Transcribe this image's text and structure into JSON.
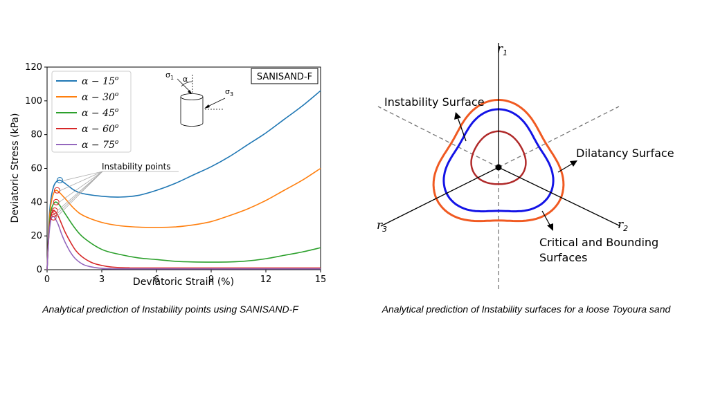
{
  "chart_data": [
    {
      "type": "line",
      "xlabel": "Deviatoric Strain (%)",
      "ylabel": "Deviatoric Stress (kPa)",
      "xlim": [
        0,
        15
      ],
      "ylim": [
        0,
        120
      ],
      "x_ticks": [
        "0",
        "3",
        "6",
        "9",
        "12",
        "15"
      ],
      "y_ticks": [
        "0",
        "20",
        "40",
        "60",
        "80",
        "100",
        "120"
      ],
      "grid": false,
      "legend_position": "top-left",
      "model_label": "SANISAND-F",
      "annotation": "Instability points",
      "inset": {
        "sigma1": "σ",
        "sigma1_sub": "1",
        "sigma3": "σ",
        "sigma3_sub": "3",
        "alpha": "α"
      },
      "series": [
        {
          "name": "α − 15°",
          "legend_base": "α − 15",
          "legend_sup": "o",
          "color": "#1f77b4",
          "x": [
            0,
            0.1,
            0.2,
            0.35,
            0.5,
            0.7,
            1.0,
            1.5,
            2.0,
            3.0,
            4.0,
            5.0,
            6.0,
            7.0,
            8.0,
            9.0,
            10.0,
            11.0,
            12.0,
            13.0,
            14.0,
            15.0
          ],
          "y": [
            0,
            28,
            41,
            49,
            52,
            53,
            51,
            47,
            45,
            43.5,
            43,
            44,
            47,
            51,
            56,
            61,
            67,
            74,
            81,
            89,
            97,
            106
          ]
        },
        {
          "name": "α − 30°",
          "legend_base": "α − 30",
          "legend_sup": "o",
          "color": "#ff7f0e",
          "x": [
            0,
            0.1,
            0.2,
            0.35,
            0.5,
            0.7,
            1.0,
            1.5,
            2.0,
            3.0,
            4.0,
            5.0,
            6.0,
            7.0,
            8.0,
            9.0,
            10.0,
            11.0,
            12.0,
            13.0,
            14.0,
            15.0
          ],
          "y": [
            0,
            25,
            38,
            45,
            47,
            45.5,
            42,
            36,
            32,
            28,
            26,
            25.2,
            25,
            25.3,
            26.5,
            28.5,
            32,
            36,
            41,
            47,
            53,
            60
          ]
        },
        {
          "name": "α − 45°",
          "legend_base": "α − 45",
          "legend_sup": "o",
          "color": "#2ca02c",
          "x": [
            0,
            0.1,
            0.2,
            0.35,
            0.5,
            0.7,
            1.0,
            1.5,
            2.0,
            3.0,
            4.0,
            5.0,
            6.0,
            7.0,
            8.0,
            9.0,
            10.0,
            11.0,
            12.0,
            13.0,
            14.0,
            15.0
          ],
          "y": [
            0,
            22,
            34,
            39,
            40,
            38,
            33,
            25,
            19,
            12,
            9,
            7,
            6,
            5,
            4.6,
            4.5,
            4.6,
            5.2,
            6.5,
            8.5,
            10.5,
            13
          ]
        },
        {
          "name": "α − 60°",
          "legend_base": "α − 60",
          "legend_sup": "o",
          "color": "#d62728",
          "x": [
            0,
            0.1,
            0.2,
            0.3,
            0.4,
            0.6,
            0.8,
            1.0,
            1.3,
            1.6,
            2.0,
            2.5,
            3.0,
            3.5,
            4.0,
            4.5,
            5.0,
            15.0
          ],
          "y": [
            0,
            21,
            31,
            34.5,
            35,
            32,
            27,
            22,
            16,
            11,
            7,
            4,
            2.5,
            1.6,
            1.2,
            1.1,
            1.0,
            1.0
          ]
        },
        {
          "name": "α − 75°",
          "legend_base": "α − 75",
          "legend_sup": "o",
          "color": "#9467bd",
          "x": [
            0,
            0.1,
            0.2,
            0.3,
            0.4,
            0.6,
            0.8,
            1.0,
            1.3,
            1.6,
            2.0,
            2.5,
            3.0,
            3.5,
            4.0,
            15.0
          ],
          "y": [
            0,
            20,
            29,
            31.5,
            31,
            27,
            21,
            16,
            10,
            6,
            3,
            1.5,
            0.8,
            0.6,
            0.5,
            0.5
          ]
        }
      ],
      "instability_points": [
        {
          "x": 0.7,
          "y": 53,
          "color": "#1f77b4"
        },
        {
          "x": 0.55,
          "y": 47,
          "color": "#d62728"
        },
        {
          "x": 0.5,
          "y": 40,
          "color": "#d62728"
        },
        {
          "x": 0.42,
          "y": 35,
          "color": "#d62728"
        },
        {
          "x": 0.38,
          "y": 33,
          "color": "#d62728"
        },
        {
          "x": 0.35,
          "y": 31,
          "color": "#d62728"
        }
      ]
    },
    {
      "type": "diagram",
      "axes": [
        {
          "letter": "r",
          "sub": "1"
        },
        {
          "letter": "r",
          "sub": "2"
        },
        {
          "letter": "r",
          "sub": "3"
        }
      ],
      "labels": {
        "instability": "Instability Surface",
        "dilatancy": "Dilatancy Surface",
        "critical_line1": "Critical and Bounding",
        "critical_line2": "Surfaces"
      },
      "colors": {
        "outer": "#f05a22",
        "middle": "#1414e6",
        "inner": "#b02a2a"
      }
    }
  ],
  "captions": {
    "left": "Analytical prediction of Instability points using SANISAND-F",
    "right": "Analytical prediction of Instability surfaces for a loose Toyoura sand"
  }
}
